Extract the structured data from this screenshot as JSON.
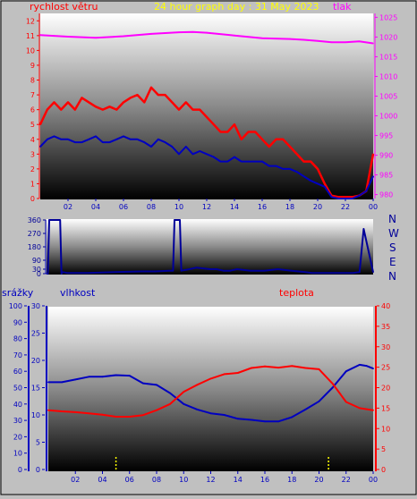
{
  "header": {
    "wind_title": "rychlost větru",
    "graph_title": "24 hour graph day : 31 May 2023",
    "pressure_title": "tlak",
    "rain_title": "srážky",
    "humidity_title": "vlhkost",
    "temperature_title": "teplota"
  },
  "direction_labels": [
    "N",
    "W",
    "S",
    "E",
    "N"
  ],
  "colors": {
    "background": "#c0c0c0",
    "wind_title": "#ff0000",
    "graph_title": "#ffff00",
    "pressure": "#ff00ff",
    "wind_gust": "#ff0000",
    "wind_avg": "#0000c0",
    "direction": "#000099",
    "humidity": "#0000c0",
    "temperature": "#ff0000",
    "rain_axis": "#0000c0",
    "rain_mark": "#ffff00"
  },
  "chart_data": [
    {
      "id": "wind-pressure",
      "type": "line",
      "xlabel": "",
      "x_ticks": [
        "02",
        "04",
        "06",
        "08",
        "10",
        "12",
        "14",
        "16",
        "18",
        "20",
        "22",
        "00"
      ],
      "x_range_hours": [
        0,
        24
      ],
      "y_left": {
        "ticks": [
          "0",
          "1",
          "2",
          "3",
          "4",
          "5",
          "6",
          "7",
          "8",
          "9",
          "10",
          "11",
          "12"
        ],
        "range": [
          0,
          12.5
        ]
      },
      "y_right": {
        "ticks": [
          "980",
          "985",
          "990",
          "995",
          "1000",
          "1005",
          "1010",
          "1015",
          "1020",
          "1025"
        ],
        "range": [
          979,
          1026
        ]
      },
      "series": [
        {
          "name": "tlak",
          "axis": "right",
          "x": [
            0,
            2,
            4,
            6,
            8,
            10,
            11,
            12,
            14,
            16,
            18,
            19,
            20,
            21,
            22,
            23,
            24
          ],
          "values": [
            1020.5,
            1020.1,
            1019.8,
            1020.2,
            1020.8,
            1021.2,
            1021.3,
            1021.1,
            1020.4,
            1019.7,
            1019.5,
            1019.3,
            1019,
            1018.7,
            1018.7,
            1018.9,
            1018.4
          ]
        },
        {
          "axis": "left",
          "style": "gust",
          "x": [
            0,
            0.5,
            1,
            1.5,
            2,
            2.5,
            3,
            3.5,
            4,
            4.5,
            5,
            5.5,
            6,
            6.5,
            7,
            7.5,
            8,
            8.5,
            9,
            9.5,
            10,
            10.5,
            11,
            11.5,
            12,
            12.5,
            13,
            13.5,
            14,
            14.5,
            15,
            15.5,
            16,
            16.5,
            17,
            17.5,
            18,
            18.5,
            19,
            19.5,
            20,
            20.5,
            21,
            21.5,
            22,
            22.5,
            23,
            23.5,
            24
          ],
          "values": [
            5.0,
            6.0,
            6.5,
            6.0,
            6.5,
            6.0,
            6.8,
            6.5,
            6.2,
            6.0,
            6.2,
            6.0,
            6.5,
            6.8,
            7.0,
            6.5,
            7.5,
            7.0,
            7.0,
            6.5,
            6.0,
            6.5,
            6.0,
            6.0,
            5.5,
            5.0,
            4.5,
            4.5,
            5.0,
            4.0,
            4.5,
            4.5,
            4.0,
            3.5,
            4.0,
            4.0,
            3.5,
            3.0,
            2.5,
            2.5,
            2.0,
            1.0,
            0.2,
            0.1,
            0.1,
            0.1,
            0.2,
            0.5,
            3.0
          ]
        },
        {
          "axis": "left",
          "style": "average",
          "x": [
            0,
            0.5,
            1,
            1.5,
            2,
            2.5,
            3,
            3.5,
            4,
            4.5,
            5,
            5.5,
            6,
            6.5,
            7,
            7.5,
            8,
            8.5,
            9,
            9.5,
            10,
            10.5,
            11,
            11.5,
            12,
            12.5,
            13,
            13.5,
            14,
            14.5,
            15,
            15.5,
            16,
            16.5,
            17,
            17.5,
            18,
            18.5,
            19,
            19.5,
            20,
            20.5,
            21,
            21.5,
            22,
            22.5,
            23,
            23.5,
            24
          ],
          "values": [
            3.5,
            4.0,
            4.2,
            4.0,
            4.0,
            3.8,
            3.8,
            4.0,
            4.2,
            3.8,
            3.8,
            4.0,
            4.2,
            4.0,
            4.0,
            3.8,
            3.5,
            4.0,
            3.8,
            3.5,
            3.0,
            3.5,
            3.0,
            3.2,
            3.0,
            2.8,
            2.5,
            2.5,
            2.8,
            2.5,
            2.5,
            2.5,
            2.5,
            2.2,
            2.2,
            2.0,
            2.0,
            1.8,
            1.5,
            1.2,
            1.0,
            0.8,
            0.1,
            0,
            0,
            0,
            0.2,
            0.5,
            1.5
          ]
        }
      ]
    },
    {
      "id": "wind-direction",
      "type": "line",
      "x_range_hours": [
        0,
        24
      ],
      "y_left": {
        "ticks": [
          "0",
          "30",
          "90",
          "180",
          "270",
          "360"
        ],
        "range": [
          0,
          360
        ]
      },
      "series": [
        {
          "axis": "left",
          "x": [
            0,
            0.1,
            0.2,
            1.0,
            1.1,
            1.2,
            1.5,
            3,
            5,
            7,
            8,
            9,
            9.3,
            9.4,
            9.8,
            9.9,
            10.5,
            11,
            12,
            12.5,
            13,
            13.5,
            14,
            15,
            16,
            17,
            18,
            19,
            19.5,
            20,
            21,
            22,
            22.5,
            23,
            23.3,
            24
          ],
          "values": [
            0,
            0,
            360,
            360,
            0,
            10,
            5,
            5,
            10,
            15,
            15,
            20,
            20,
            360,
            360,
            20,
            30,
            40,
            30,
            30,
            20,
            20,
            30,
            20,
            20,
            30,
            20,
            10,
            5,
            5,
            5,
            5,
            5,
            10,
            300,
            10
          ]
        }
      ]
    },
    {
      "id": "rain-humidity-temperature",
      "type": "line",
      "x_ticks": [
        "02",
        "04",
        "06",
        "08",
        "10",
        "12",
        "14",
        "16",
        "18",
        "20",
        "22",
        "00"
      ],
      "x_range_hours": [
        0,
        24
      ],
      "y_rain": {
        "ticks": [
          "0",
          "10",
          "20",
          "30",
          "40",
          "50",
          "60",
          "70",
          "80",
          "90",
          "100"
        ],
        "range": [
          0,
          100
        ]
      },
      "y_humidity": {
        "ticks": [
          "0",
          "5",
          "10",
          "15",
          "20",
          "25",
          "30"
        ],
        "range": [
          0,
          30
        ]
      },
      "y_right": {
        "ticks": [
          "0",
          "5",
          "10",
          "15",
          "20",
          "25",
          "30",
          "35",
          "40"
        ],
        "range": [
          0,
          40
        ]
      },
      "series": [
        {
          "name": "vlhkost",
          "axis": "humidity",
          "x": [
            0,
            1,
            2,
            3,
            4,
            5,
            6,
            7,
            8,
            9,
            10,
            11,
            12,
            13,
            14,
            15,
            16,
            17,
            18,
            19,
            20,
            21,
            22,
            23,
            23.5,
            24
          ],
          "values": [
            16,
            16,
            16.5,
            17,
            17,
            17.3,
            17.2,
            15.8,
            15.5,
            14,
            12,
            11,
            10.3,
            10,
            9.3,
            9.1,
            8.8,
            8.8,
            9.6,
            11,
            12.5,
            15,
            18,
            19.2,
            19,
            18.5
          ]
        },
        {
          "name": "teplota",
          "axis": "right",
          "x": [
            0,
            1,
            2,
            3,
            4,
            5,
            6,
            7,
            8,
            9,
            10,
            11,
            12,
            13,
            14,
            15,
            16,
            17,
            18,
            19,
            20,
            21,
            22,
            23,
            24
          ],
          "values": [
            14.5,
            14.2,
            14,
            13.7,
            13.4,
            12.9,
            12.9,
            13.3,
            14.5,
            16,
            19,
            20.7,
            22.2,
            23.3,
            23.6,
            24.8,
            25.2,
            24.9,
            25.3,
            24.8,
            24.5,
            21,
            16.5,
            15,
            14.5
          ]
        },
        {
          "axis": "rain",
          "style": "rain-marks",
          "x": [
            5,
            20.7
          ],
          "values": [
            1,
            1
          ]
        }
      ]
    }
  ]
}
